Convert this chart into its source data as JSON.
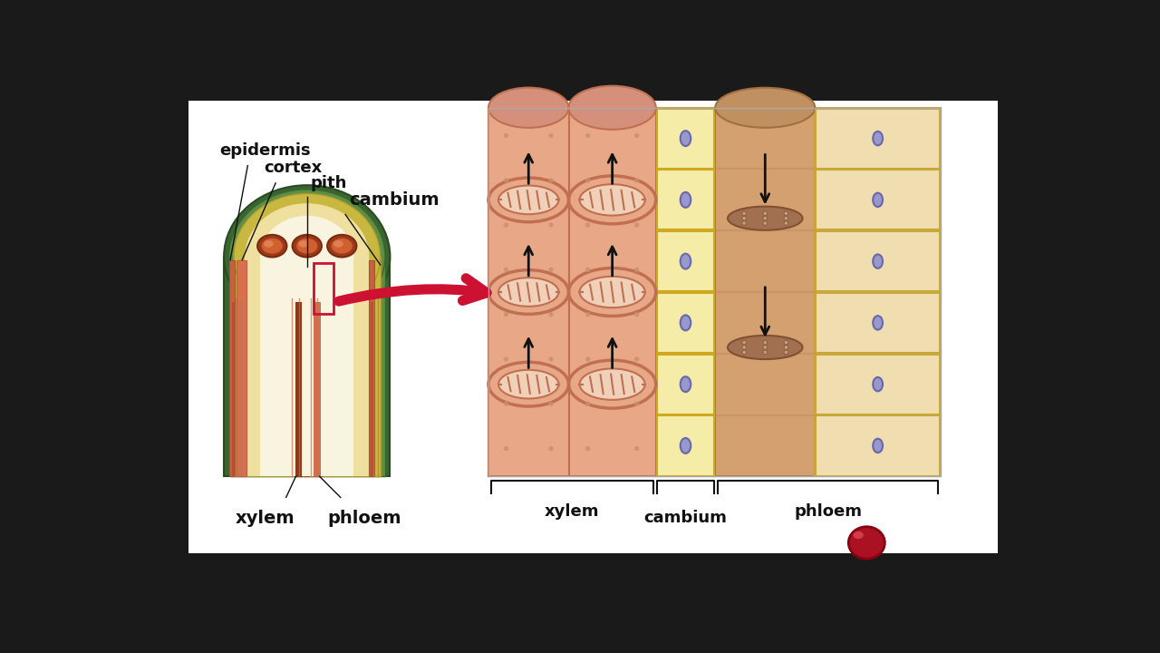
{
  "bg_color": "#1a1a1a",
  "white_bg": "#ffffff",
  "labels": {
    "epidermis": "epidermis",
    "cortex": "cortex",
    "pith": "pith",
    "cambium": "cambium",
    "xylem": "xylem",
    "phloem": "phloem"
  },
  "colors": {
    "outer_green_dark": "#3d6b32",
    "outer_green": "#4a8040",
    "cortex_yellow": "#c8a830",
    "pith_cream": "#f0e0a0",
    "pith_light": "#f8f0d0",
    "xylem_orange": "#d4704a",
    "xylem_mid": "#c86040",
    "phloem_orange": "#d4805a",
    "vascular_top_dark": "#9b4020",
    "vascular_top_mid": "#c05030",
    "red_box": "#cc1133",
    "red_arrow": "#cc1133",
    "xylem_tube": "#e8a880",
    "xylem_tube_dark": "#cc7755",
    "xylem_ring": "#cc7755",
    "xylem_ring_inner": "#f0d0b8",
    "cambium_fill": "#f5e8a0",
    "cambium_border": "#c8a030",
    "nucleus_fill": "#9090c0",
    "nucleus_border": "#6060a0",
    "sieve_tube_fill": "#c8956a",
    "sieve_tube_border": "#a07050",
    "sieve_plate_fill": "#a07050",
    "companion_fill": "#e8d0a8",
    "companion_border": "#c8a050",
    "black": "#111111",
    "dot_sm": "#d0a080"
  }
}
